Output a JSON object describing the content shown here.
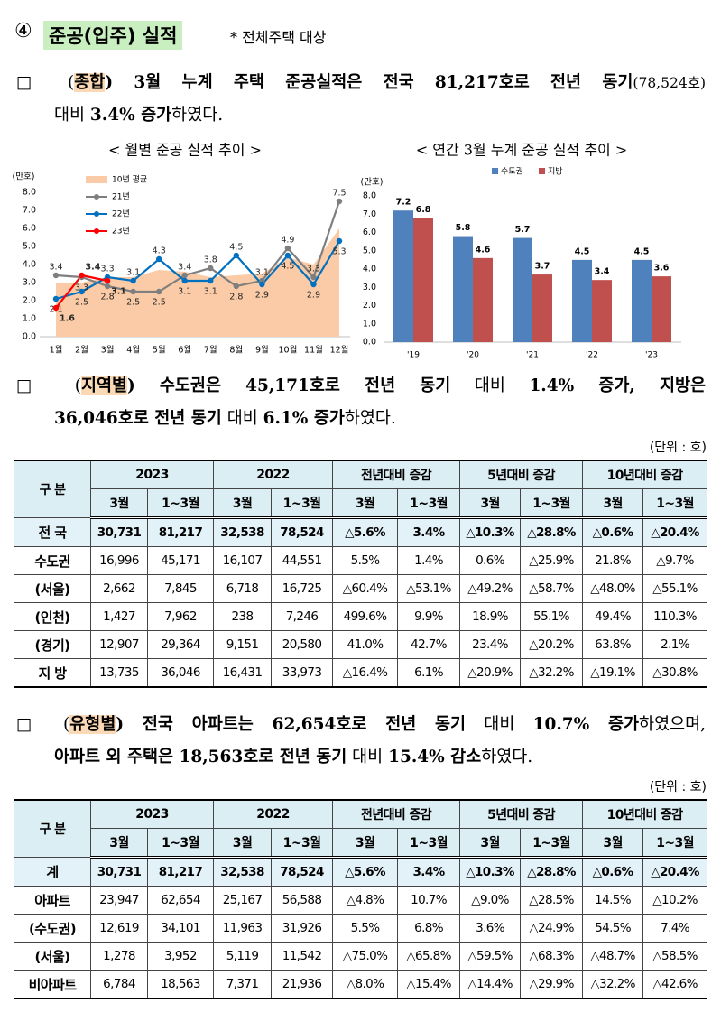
{
  "header": {
    "number": "④",
    "title": "준공(입주) 실적",
    "note": "* 전체주택 대상"
  },
  "paragraphs": [
    [
      "□ (",
      "종합",
      ") 3월 누계 주택 준공실적은 전국 81,217호로 전년 동기",
      "(78,524호)",
      "대비 ",
      "3.4% 증가",
      "하였다."
    ],
    [
      "□ (",
      "지역별",
      ") 수도권은 45,171호로 전년 동기",
      " 대비 ",
      "1.4% 증가",
      ", 지방은",
      "36,046호로 전년 동기",
      " 대비 ",
      "6.1% 증가",
      "하였다."
    ],
    [
      "□ (",
      "유형별",
      ") 전국 아파트는 62,654호로 전년 동기",
      " 대비 ",
      "10.7% 증가",
      "하였으며,",
      "아파트 외 주택은 18,563호로 전년 동기",
      " 대비 ",
      "15.4% 감소",
      "하였다."
    ]
  ],
  "chart_data": [
    {
      "type": "line",
      "title": "< 월별 준공 실적 추이 >",
      "y_label": "(만호)",
      "categories": [
        "1월",
        "2월",
        "3월",
        "4월",
        "5월",
        "6월",
        "7월",
        "8월",
        "9월",
        "10월",
        "11월",
        "12월"
      ],
      "ylim": [
        0,
        8
      ],
      "yticks": [
        {
          "value": 0,
          "label": "0.0"
        },
        {
          "value": 1,
          "label": "1.0"
        },
        {
          "value": 2,
          "label": "2.0"
        },
        {
          "value": 3,
          "label": "3.0"
        },
        {
          "value": 4,
          "label": "4.0"
        },
        {
          "value": 5,
          "label": "5.0"
        },
        {
          "value": 6,
          "label": "6.0"
        },
        {
          "value": 7,
          "label": "7.0"
        },
        {
          "value": 8,
          "label": "8.0"
        }
      ],
      "series": [
        {
          "name": "10년 평균",
          "color": "#facba6",
          "style": "area",
          "values": [
            3.0,
            3.0,
            3.3,
            3.3,
            3.7,
            3.6,
            3.3,
            3.4,
            3.5,
            4.4,
            4.0,
            6.0
          ]
        },
        {
          "name": "21년",
          "color": "#7f7f7f",
          "style": "line",
          "values": [
            3.4,
            3.3,
            2.8,
            2.5,
            2.5,
            3.4,
            3.8,
            2.8,
            3.1,
            4.9,
            3.3,
            7.5
          ]
        },
        {
          "name": "22년",
          "color": "#0070c0",
          "style": "line",
          "values": [
            2.1,
            2.5,
            3.3,
            3.1,
            4.3,
            3.1,
            3.1,
            4.5,
            2.9,
            4.5,
            2.9,
            5.3
          ]
        },
        {
          "name": "23년",
          "color": "#ff0000",
          "style": "line",
          "values": [
            1.6,
            3.4,
            3.1,
            null,
            null,
            null,
            null,
            null,
            null,
            null,
            null,
            null
          ]
        }
      ]
    },
    {
      "type": "bar",
      "title": "< 연간 3월 누계 준공 실적 추이 >",
      "y_label": "(만호)",
      "categories": [
        "'19",
        "'20",
        "'21",
        "'22",
        "'23"
      ],
      "ylim": [
        0,
        8
      ],
      "yticks": [
        {
          "value": 0,
          "label": "0.0"
        },
        {
          "value": 1,
          "label": "1.0"
        },
        {
          "value": 2,
          "label": "2.0"
        },
        {
          "value": 3,
          "label": "3.0"
        },
        {
          "value": 4,
          "label": "4.0"
        },
        {
          "value": 5,
          "label": "5.0"
        },
        {
          "value": 6,
          "label": "6.0"
        },
        {
          "value": 7,
          "label": "7.0"
        },
        {
          "value": 8,
          "label": "8.0"
        }
      ],
      "series": [
        {
          "name": "수도권",
          "color": "#4f81bd",
          "values": [
            7.2,
            5.8,
            5.7,
            4.5,
            4.5
          ]
        },
        {
          "name": "지방",
          "color": "#c0504d",
          "values": [
            6.8,
            4.6,
            3.7,
            3.4,
            3.6
          ]
        }
      ]
    }
  ],
  "unit_notes": [
    "(단위 : 호)",
    "(단위 : 호)"
  ],
  "tables": [
    {
      "corner": "구 분",
      "groups": [
        "2023",
        "2022",
        "전년대비 증감",
        "5년대비 증감",
        "10년대비 증감"
      ],
      "subheaders": [
        "3월",
        "1~3월",
        "3월",
        "1~3월",
        "3월",
        "1~3월",
        "3월",
        "1~3월",
        "3월",
        "1~3월"
      ],
      "rows": [
        [
          "전 국",
          "30,731",
          "81,217",
          "32,538",
          "78,524",
          "△5.6%",
          "3.4%",
          "△10.3%",
          "△28.8%",
          "△0.6%",
          "△20.4%"
        ],
        [
          "수도권",
          "16,996",
          "45,171",
          "16,107",
          "44,551",
          "5.5%",
          "1.4%",
          "0.6%",
          "△25.9%",
          "21.8%",
          "△9.7%"
        ],
        [
          "(서울)",
          "2,662",
          "7,845",
          "6,718",
          "16,725",
          "△60.4%",
          "△53.1%",
          "△49.2%",
          "△58.7%",
          "△48.0%",
          "△55.1%"
        ],
        [
          "(인천)",
          "1,427",
          "7,962",
          "238",
          "7,246",
          "499.6%",
          "9.9%",
          "18.9%",
          "55.1%",
          "49.4%",
          "110.3%"
        ],
        [
          "(경기)",
          "12,907",
          "29,364",
          "9,151",
          "20,580",
          "41.0%",
          "42.7%",
          "23.4%",
          "△20.2%",
          "63.8%",
          "2.1%"
        ],
        [
          "지 방",
          "13,735",
          "36,046",
          "16,431",
          "33,973",
          "△16.4%",
          "6.1%",
          "△20.9%",
          "△32.2%",
          "△19.1%",
          "△30.8%"
        ]
      ]
    },
    {
      "corner": "구 분",
      "groups": [
        "2023",
        "2022",
        "전년대비 증감",
        "5년대비 증감",
        "10년대비 증감"
      ],
      "subheaders": [
        "3월",
        "1~3월",
        "3월",
        "1~3월",
        "3월",
        "1~3월",
        "3월",
        "1~3월",
        "3월",
        "1~3월"
      ],
      "rows": [
        [
          "계",
          "30,731",
          "81,217",
          "32,538",
          "78,524",
          "△5.6%",
          "3.4%",
          "△10.3%",
          "△28.8%",
          "△0.6%",
          "△20.4%"
        ],
        [
          "아파트",
          "23,947",
          "62,654",
          "25,167",
          "56,588",
          "△4.8%",
          "10.7%",
          "△9.0%",
          "△28.5%",
          "14.5%",
          "△10.2%"
        ],
        [
          "(수도권)",
          "12,619",
          "34,101",
          "11,963",
          "31,926",
          "5.5%",
          "6.8%",
          "3.6%",
          "△24.9%",
          "54.5%",
          "7.4%"
        ],
        [
          "(서울)",
          "1,278",
          "3,952",
          "5,119",
          "11,542",
          "△75.0%",
          "△65.8%",
          "△59.5%",
          "△68.3%",
          "△48.7%",
          "△58.5%"
        ],
        [
          "비아파트",
          "6,784",
          "18,563",
          "7,371",
          "21,936",
          "△8.0%",
          "△15.4%",
          "△14.4%",
          "△29.9%",
          "△32.2%",
          "△42.6%"
        ]
      ]
    }
  ]
}
